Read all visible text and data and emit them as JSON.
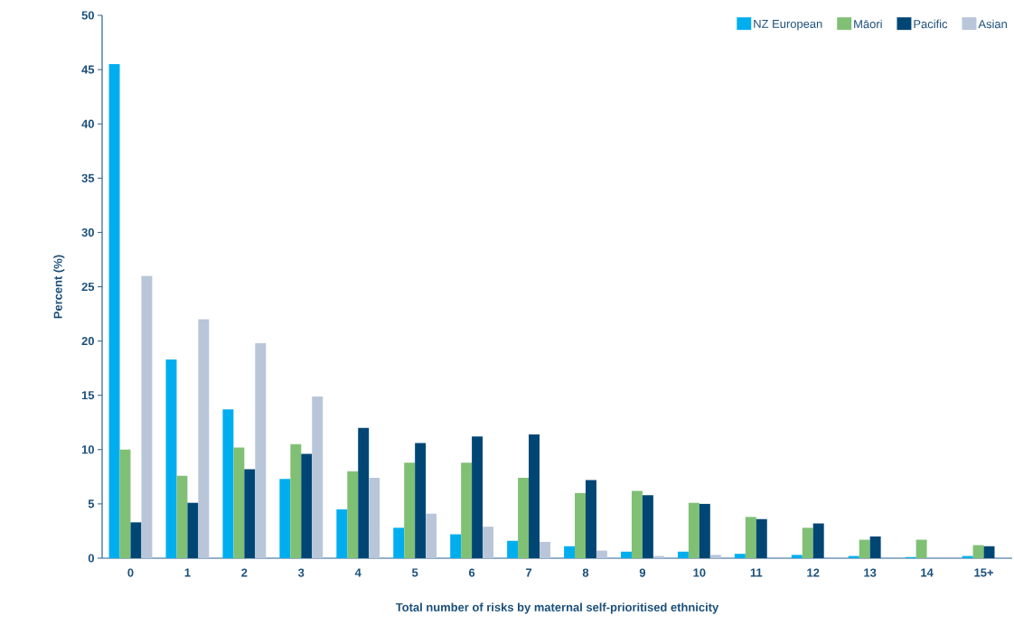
{
  "chart_data": {
    "type": "bar",
    "xlabel": "Total number of risks by maternal self-prioritised ethnicity",
    "ylabel": "Percent (%)",
    "categories": [
      "0",
      "1",
      "2",
      "3",
      "4",
      "5",
      "6",
      "7",
      "8",
      "9",
      "10",
      "11",
      "12",
      "13",
      "14",
      "15+"
    ],
    "series": [
      {
        "name": "NZ European",
        "color": "#00aeef",
        "values": [
          45.5,
          18.3,
          13.7,
          7.3,
          4.5,
          2.8,
          2.2,
          1.6,
          1.1,
          0.6,
          0.6,
          0.4,
          0.3,
          0.2,
          0.1,
          0.2
        ]
      },
      {
        "name": "Māori",
        "color": "#80c075",
        "values": [
          10.0,
          7.6,
          10.2,
          10.5,
          8.0,
          8.8,
          8.8,
          7.4,
          6.0,
          6.2,
          5.1,
          3.8,
          2.8,
          1.7,
          1.7,
          1.2
        ]
      },
      {
        "name": "Pacific",
        "color": "#004674",
        "values": [
          3.3,
          5.1,
          8.2,
          9.6,
          12.0,
          10.6,
          11.2,
          11.4,
          7.2,
          5.8,
          5.0,
          3.6,
          3.2,
          2.0,
          0,
          1.1
        ]
      },
      {
        "name": "Asian",
        "color": "#b9c6d9",
        "values": [
          26.0,
          22.0,
          19.8,
          14.9,
          7.4,
          4.1,
          2.9,
          1.5,
          0.7,
          0.2,
          0.3,
          0,
          0,
          0,
          0,
          0
        ]
      }
    ],
    "ylim": [
      0,
      50
    ],
    "yticks": [
      0,
      5,
      10,
      15,
      20,
      25,
      30,
      35,
      40,
      45,
      50
    ],
    "grid": false,
    "legend": "top right"
  }
}
